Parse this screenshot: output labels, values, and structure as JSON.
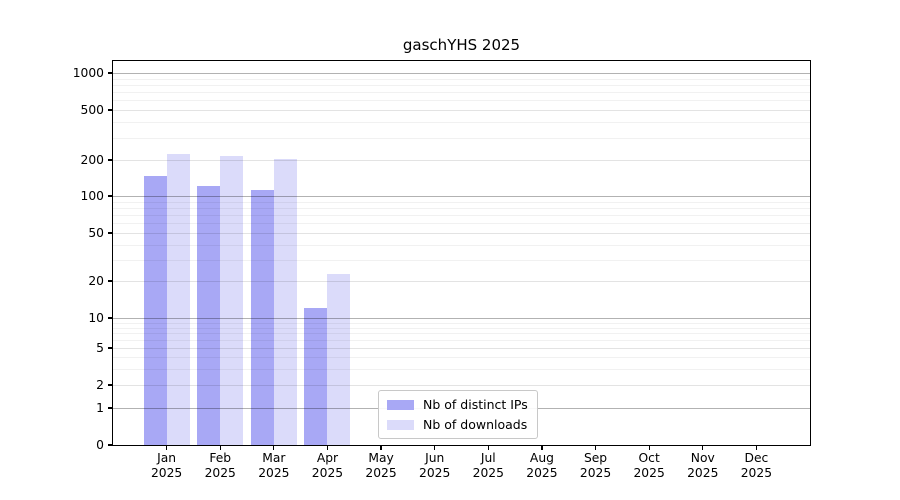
{
  "title": "gaschYHS 2025",
  "legend": {
    "items": [
      {
        "label": "Nb of distinct IPs",
        "color": "#a8a8f5"
      },
      {
        "label": "Nb of downloads",
        "color": "#dbdbfa"
      }
    ]
  },
  "chart_data": {
    "type": "bar",
    "title": "gaschYHS 2025",
    "categories": [
      "Jan 2025",
      "Feb 2025",
      "Mar 2025",
      "Apr 2025",
      "May 2025",
      "Jun 2025",
      "Jul 2025",
      "Aug 2025",
      "Sep 2025",
      "Oct 2025",
      "Nov 2025",
      "Dec 2025"
    ],
    "series": [
      {
        "name": "Nb of distinct IPs",
        "color": "#a8a8f5",
        "values": [
          147,
          121,
          112,
          12,
          0,
          0,
          0,
          0,
          0,
          0,
          0,
          0
        ]
      },
      {
        "name": "Nb of downloads",
        "color": "#dbdbfa",
        "values": [
          225,
          214,
          202,
          23,
          0,
          0,
          0,
          0,
          0,
          0,
          0,
          0
        ]
      }
    ],
    "xlabel": "",
    "ylabel": "",
    "yscale": "symlog",
    "yticks": [
      0,
      1,
      2,
      5,
      10,
      20,
      50,
      100,
      200,
      500,
      1000
    ],
    "ylim": [
      0,
      1250
    ],
    "grid": true,
    "legend_position": "lower center",
    "background": "#ffffff",
    "text_color": "#000000"
  }
}
